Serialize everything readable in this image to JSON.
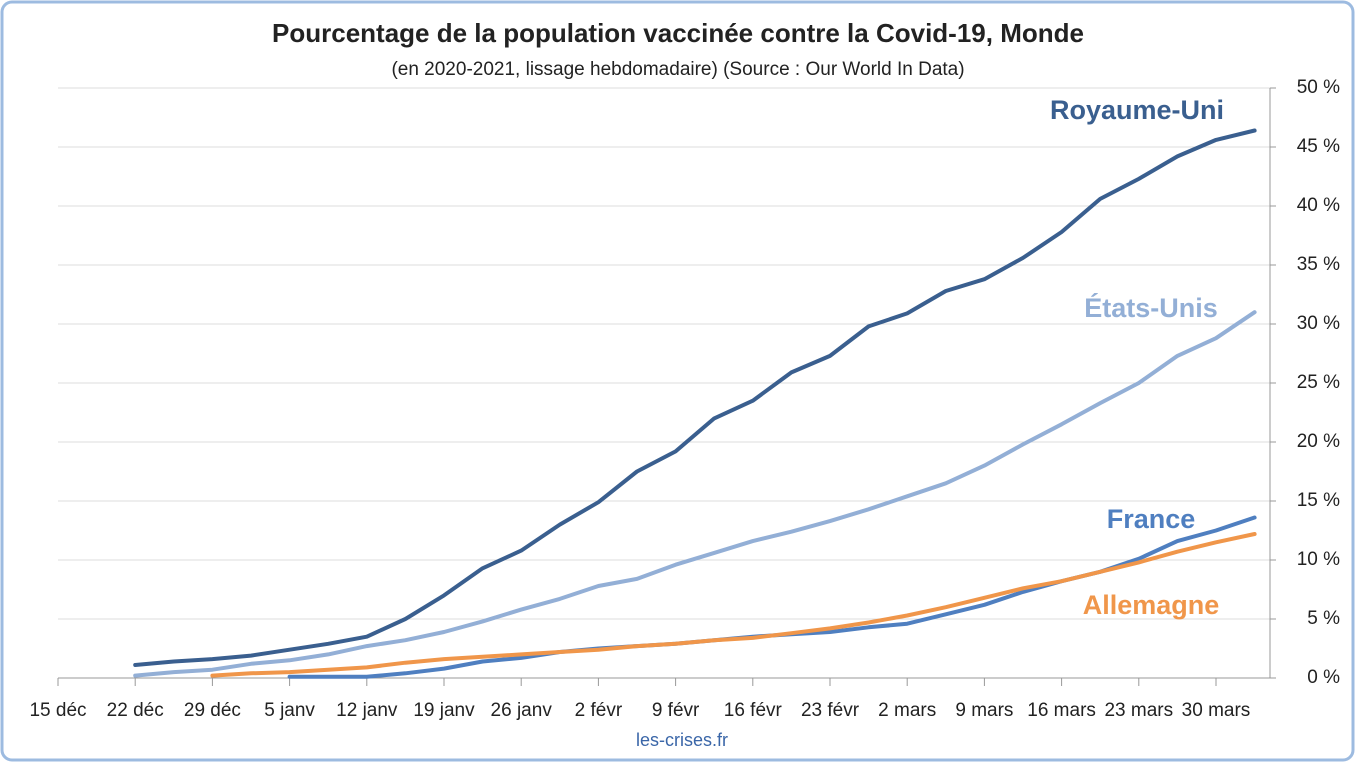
{
  "chart_data": {
    "type": "line",
    "title": "Pourcentage de la population vaccinée contre la Covid-19, Monde",
    "subtitle": "(en 2020-2021, lissage hebdomadaire) (Source : Our World In Data)",
    "source": "les-crises.fr",
    "categories": [
      "15 déc",
      null,
      "22 déc",
      null,
      "29 déc",
      null,
      "5 janv",
      null,
      "12 janv",
      null,
      "19 janv",
      null,
      "26 janv",
      null,
      "2 févr",
      null,
      "9 févr",
      null,
      "16 févr",
      null,
      "23 févr",
      null,
      "2 mars",
      null,
      "9 mars",
      null,
      "16 mars",
      null,
      "23 mars",
      null,
      "30 mars",
      null
    ],
    "ylim": [
      0,
      50
    ],
    "yticks": [
      {
        "value": 0,
        "label": "0 %"
      },
      {
        "value": 5,
        "label": "5 %"
      },
      {
        "value": 10,
        "label": "10 %"
      },
      {
        "value": 15,
        "label": "15 %"
      },
      {
        "value": 20,
        "label": "20 %"
      },
      {
        "value": 25,
        "label": "25 %"
      },
      {
        "value": 30,
        "label": "30 %"
      },
      {
        "value": 35,
        "label": "35 %"
      },
      {
        "value": 40,
        "label": "40 %"
      },
      {
        "value": 45,
        "label": "45 %"
      },
      {
        "value": 50,
        "label": "50 %"
      }
    ],
    "grid": true,
    "y_axis_side": "right",
    "series": [
      {
        "name": "Royaume-Uni",
        "color": "#3a5f8f",
        "values": [
          null,
          null,
          1.1,
          1.4,
          1.6,
          1.9,
          2.4,
          2.9,
          3.5,
          5.0,
          7.0,
          9.3,
          10.8,
          13.0,
          14.9,
          17.5,
          19.2,
          22.0,
          23.5,
          25.9,
          27.3,
          29.8,
          30.9,
          32.8,
          33.8,
          35.6,
          37.8,
          40.6,
          42.3,
          44.2,
          45.6,
          46.4
        ]
      },
      {
        "name": "États-Unis",
        "color": "#93afd6",
        "values": [
          null,
          null,
          0.2,
          0.5,
          0.7,
          1.2,
          1.5,
          2.0,
          2.7,
          3.2,
          3.9,
          4.8,
          5.8,
          6.7,
          7.8,
          8.4,
          9.6,
          10.6,
          11.6,
          12.4,
          13.3,
          14.3,
          15.4,
          16.5,
          18.0,
          19.8,
          21.5,
          23.3,
          25.0,
          27.3,
          28.8,
          31.0
        ]
      },
      {
        "name": "France",
        "color": "#4f7fc0",
        "values": [
          null,
          null,
          null,
          null,
          null,
          null,
          0.1,
          0.1,
          0.1,
          0.4,
          0.8,
          1.4,
          1.7,
          2.2,
          2.5,
          2.7,
          2.9,
          3.2,
          3.5,
          3.7,
          3.9,
          4.3,
          4.6,
          5.4,
          6.2,
          7.3,
          8.2,
          9.0,
          10.1,
          11.6,
          12.5,
          13.6
        ]
      },
      {
        "name": "Allemagne",
        "color": "#f0964a",
        "values": [
          null,
          null,
          null,
          null,
          0.2,
          0.4,
          0.5,
          0.7,
          0.9,
          1.3,
          1.6,
          1.8,
          2.0,
          2.2,
          2.4,
          2.7,
          2.9,
          3.2,
          3.4,
          3.8,
          4.2,
          4.7,
          5.3,
          6.0,
          6.8,
          7.6,
          8.2,
          9.0,
          9.8,
          10.7,
          11.5,
          12.2
        ]
      }
    ]
  }
}
